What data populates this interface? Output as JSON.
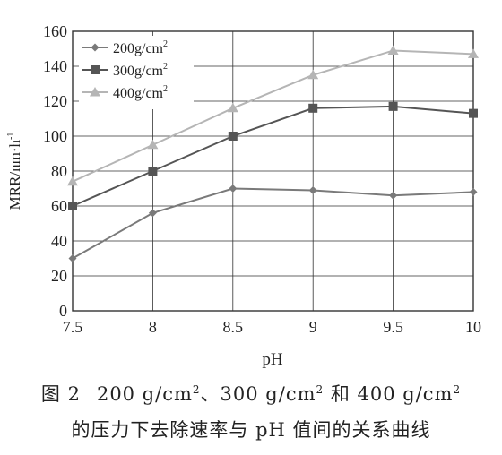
{
  "chart_data": {
    "type": "line",
    "x": [
      7.5,
      8,
      8.5,
      9,
      9.5,
      10
    ],
    "xticks": [
      "7.5",
      "8",
      "8.5",
      "9",
      "9.5",
      "10"
    ],
    "yticks": [
      "0",
      "20",
      "40",
      "60",
      "80",
      "100",
      "120",
      "140",
      "160"
    ],
    "xlim": [
      7.5,
      10
    ],
    "ylim": [
      0,
      160
    ],
    "xlabel": "pH",
    "ylabel_main": "MRR/nm·h",
    "ylabel_sup": "-1",
    "grid": true,
    "legend_position": "top-left",
    "series": [
      {
        "name_main": "200g/cm",
        "name_sup": "2",
        "marker": "diamond",
        "color": "#7a7a7a",
        "values": [
          30,
          56,
          70,
          69,
          66,
          68
        ]
      },
      {
        "name_main": "300g/cm",
        "name_sup": "2",
        "marker": "square",
        "color": "#555555",
        "values": [
          60,
          80,
          100,
          116,
          117,
          113
        ]
      },
      {
        "name_main": "400g/cm",
        "name_sup": "2",
        "marker": "triangle",
        "color": "#b5b5b5",
        "values": [
          74,
          95,
          116,
          135,
          149,
          147
        ]
      }
    ]
  },
  "caption": {
    "figure_label": "图 2",
    "line1_a": "200 g/cm",
    "line1_sup_a": "2",
    "line1_b": "、300 g/cm",
    "line1_sup_b": "2",
    "line1_c": " 和 400 g/cm",
    "line1_sup_c": "2",
    "line2": "的压力下去除速率与 pH 值间的关系曲线"
  }
}
